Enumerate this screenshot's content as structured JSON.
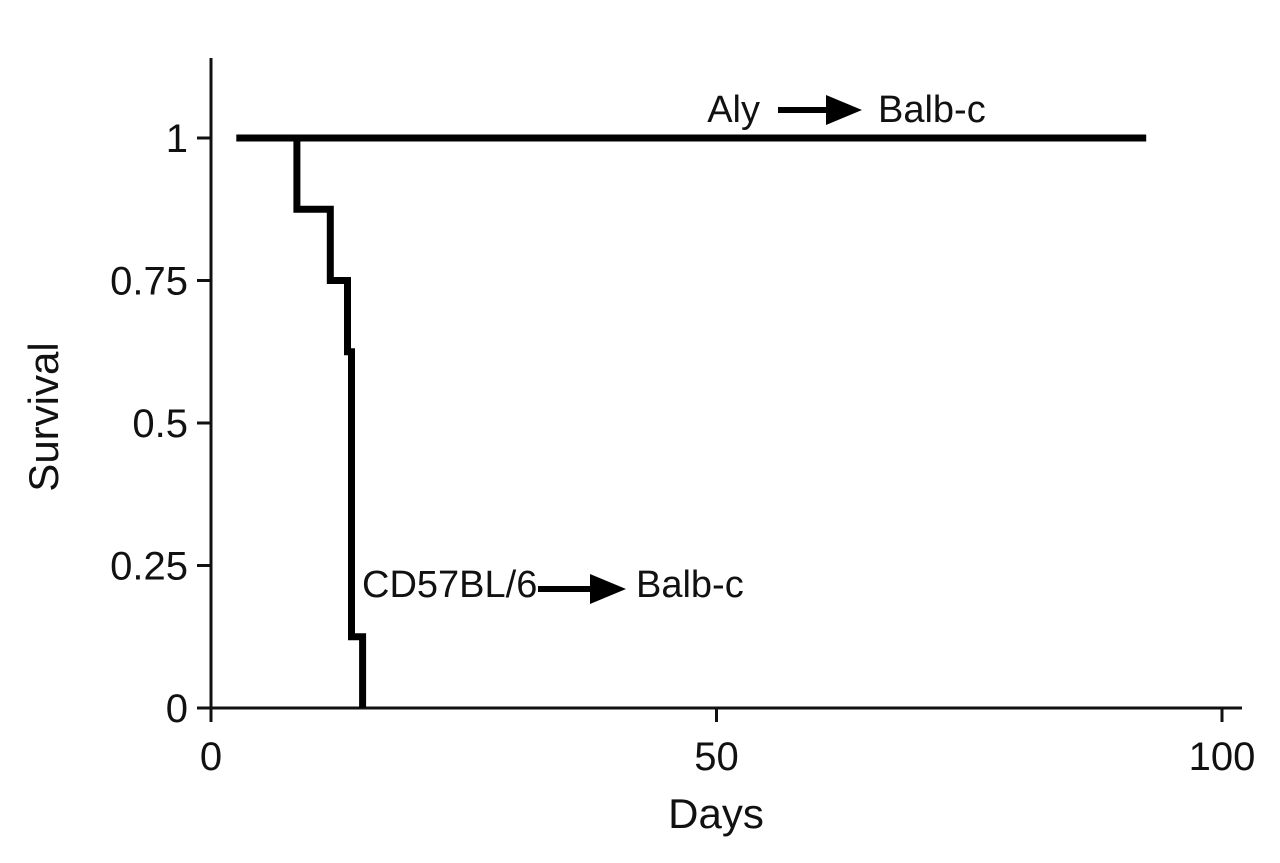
{
  "chart_data": {
    "type": "line",
    "step": true,
    "title": "",
    "xlabel": "Days",
    "ylabel": "Survival",
    "xlim": [
      0,
      100
    ],
    "ylim": [
      0,
      1.1
    ],
    "x_ticks": [
      0,
      50,
      100
    ],
    "y_ticks": [
      0,
      0.25,
      0.5,
      0.75,
      1
    ],
    "x_tick_labels": [
      "0",
      "50",
      "100"
    ],
    "y_tick_labels": [
      "0",
      "0.25",
      "0.5",
      "0.75",
      "1"
    ],
    "grid": false,
    "line_color": "#000000",
    "series": [
      {
        "label_parts": [
          "Aly",
          "Balb-c"
        ],
        "points": [
          [
            2.5,
            1
          ],
          [
            92.5,
            1
          ]
        ]
      },
      {
        "label_parts": [
          "CD57BL/6",
          "Balb-c"
        ],
        "points": [
          [
            8.5,
            1
          ],
          [
            8.5,
            0.875
          ],
          [
            11.8,
            0.875
          ],
          [
            11.8,
            0.75
          ],
          [
            13.5,
            0.75
          ],
          [
            13.5,
            0.625
          ],
          [
            13.9,
            0.625
          ],
          [
            13.9,
            0.125
          ],
          [
            15,
            0.125
          ],
          [
            15,
            0
          ]
        ]
      }
    ]
  }
}
